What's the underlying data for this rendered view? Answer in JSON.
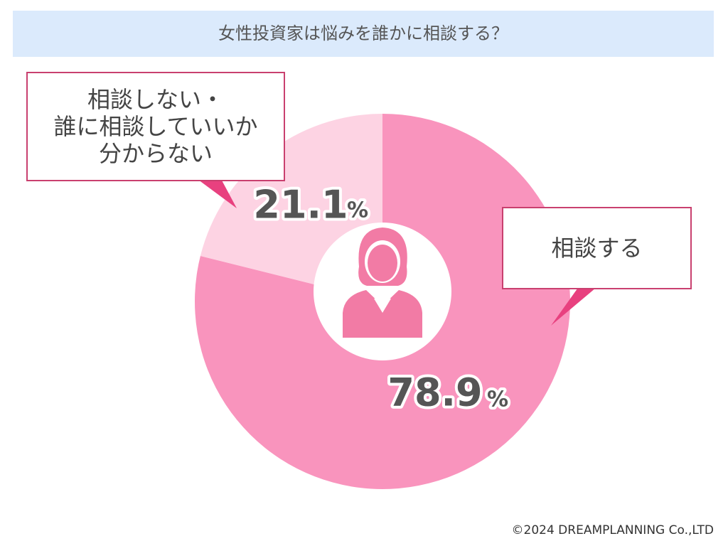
{
  "chart_data": {
    "type": "pie",
    "title": "女性投資家は悩みを誰かに相談する？",
    "categories": [
      "相談する",
      "相談しない・\n誰に相談していいか\n分からない"
    ],
    "values": [
      78.9,
      21.1
    ],
    "unit": "%",
    "colors": [
      "#f994bd",
      "#fdd3e3"
    ],
    "footer": "©2024 DREAMPLANNING Co.,LTD"
  }
}
